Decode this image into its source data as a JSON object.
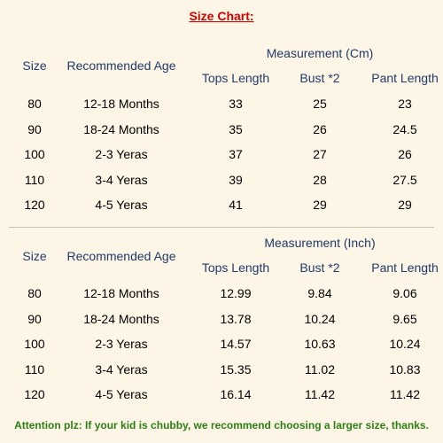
{
  "title": "Size Chart:",
  "tables": [
    {
      "measurement_label": "Measurement (Cm)",
      "headers": {
        "size": "Size",
        "age": "Recommended Age",
        "tops": "Tops Length",
        "bust": "Bust *2",
        "pant": "Pant Length"
      },
      "rows": [
        {
          "size": "80",
          "age": "12-18 Months",
          "tops": "33",
          "bust": "25",
          "pant": "23"
        },
        {
          "size": "90",
          "age": "18-24 Months",
          "tops": "35",
          "bust": "26",
          "pant": "24.5"
        },
        {
          "size": "100",
          "age": "2-3 Yeras",
          "tops": "37",
          "bust": "27",
          "pant": "26"
        },
        {
          "size": "110",
          "age": "3-4 Yeras",
          "tops": "39",
          "bust": "28",
          "pant": "27.5"
        },
        {
          "size": "120",
          "age": "4-5 Yeras",
          "tops": "41",
          "bust": "29",
          "pant": "29"
        }
      ]
    },
    {
      "measurement_label": "Measurement (Inch)",
      "headers": {
        "size": "Size",
        "age": "Recommended Age",
        "tops": "Tops Length",
        "bust": "Bust *2",
        "pant": "Pant Length"
      },
      "rows": [
        {
          "size": "80",
          "age": "12-18 Months",
          "tops": "12.99",
          "bust": "9.84",
          "pant": "9.06"
        },
        {
          "size": "90",
          "age": "18-24 Months",
          "tops": "13.78",
          "bust": "10.24",
          "pant": "9.65"
        },
        {
          "size": "100",
          "age": "2-3 Yeras",
          "tops": "14.57",
          "bust": "10.63",
          "pant": "10.24"
        },
        {
          "size": "110",
          "age": "3-4 Yeras",
          "tops": "15.35",
          "bust": "11.02",
          "pant": "10.83"
        },
        {
          "size": "120",
          "age": "4-5 Yeras",
          "tops": "16.14",
          "bust": "11.42",
          "pant": "11.42"
        }
      ]
    }
  ],
  "note": "Attention plz: If your kid is chubby, we recommend choosing a larger size, thanks.",
  "colors": {
    "background": "#fdf6e6",
    "title": "#d40000",
    "header": "#1f3a6a",
    "note": "#2e7d16"
  }
}
